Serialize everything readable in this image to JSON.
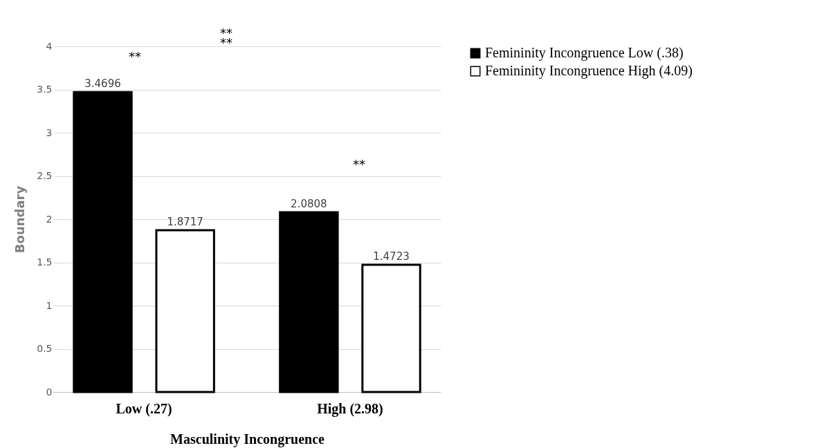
{
  "chart_data": {
    "type": "bar",
    "xlabel": "Masculinity Incongruence",
    "ylabel": "Boundary",
    "categories": [
      "Low (.27)",
      "High (2.98)"
    ],
    "series": [
      {
        "name": "Femininity Incongruence Low (.38)",
        "color": "#000000",
        "values": [
          3.4696,
          2.0808
        ]
      },
      {
        "name": "Femininity Incongruence High (4.09)",
        "color": "#ffffff",
        "values": [
          1.8717,
          1.4723
        ]
      }
    ],
    "ylim": [
      0,
      4
    ],
    "yticks": [
      0,
      0.5,
      1,
      1.5,
      2,
      2.5,
      3,
      3.5,
      4
    ],
    "grid": "y",
    "legend": "top right",
    "data_labels": true,
    "annotations": [
      "**",
      "**",
      "**",
      "**"
    ]
  }
}
